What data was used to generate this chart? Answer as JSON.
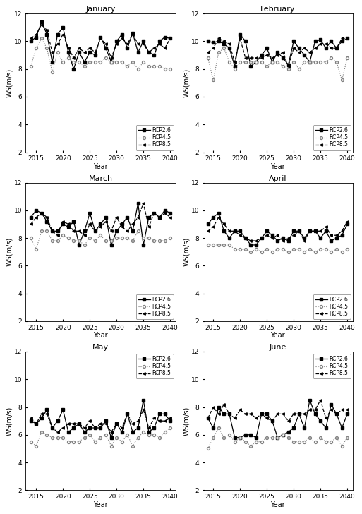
{
  "months": [
    "January",
    "February",
    "March",
    "April",
    "May",
    "June"
  ],
  "years": [
    2014,
    2015,
    2016,
    2017,
    2018,
    2019,
    2020,
    2021,
    2022,
    2023,
    2024,
    2025,
    2026,
    2027,
    2028,
    2029,
    2030,
    2031,
    2032,
    2033,
    2034,
    2035,
    2036,
    2037,
    2038,
    2039,
    2040
  ],
  "rcp26": {
    "January": [
      10.0,
      10.3,
      11.4,
      10.5,
      8.5,
      10.5,
      11.0,
      9.2,
      8.0,
      9.2,
      8.5,
      9.2,
      9.0,
      10.3,
      9.5,
      8.5,
      10.0,
      10.5,
      9.5,
      10.6,
      9.2,
      10.0,
      9.2,
      9.0,
      10.0,
      10.3,
      10.2
    ],
    "February": [
      10.0,
      9.9,
      10.0,
      9.8,
      9.5,
      8.2,
      10.5,
      10.0,
      8.2,
      8.5,
      9.0,
      9.5,
      8.5,
      9.2,
      8.8,
      8.3,
      10.0,
      9.5,
      9.0,
      8.5,
      10.0,
      10.1,
      9.5,
      10.0,
      9.5,
      10.0,
      10.2
    ],
    "March": [
      9.5,
      10.0,
      9.8,
      9.2,
      8.5,
      8.5,
      9.0,
      8.8,
      9.2,
      7.5,
      8.5,
      9.8,
      8.5,
      9.0,
      9.5,
      7.5,
      8.5,
      9.0,
      9.5,
      8.5,
      10.5,
      7.5,
      9.5,
      9.8,
      9.5,
      10.0,
      9.8
    ],
    "April": [
      9.0,
      9.5,
      9.8,
      8.5,
      8.0,
      8.5,
      8.5,
      8.0,
      7.5,
      7.5,
      8.0,
      8.5,
      8.2,
      7.8,
      8.0,
      7.8,
      8.5,
      8.5,
      8.0,
      8.5,
      8.5,
      8.0,
      8.5,
      7.8,
      8.0,
      8.2,
      9.0
    ],
    "May": [
      7.0,
      6.8,
      7.2,
      7.8,
      6.5,
      7.0,
      7.8,
      6.2,
      6.5,
      6.8,
      6.2,
      6.5,
      6.5,
      6.5,
      7.0,
      5.8,
      6.8,
      6.2,
      7.5,
      6.2,
      6.5,
      8.5,
      6.2,
      6.5,
      7.5,
      7.5,
      7.0
    ],
    "June": [
      7.2,
      6.5,
      8.0,
      7.5,
      7.5,
      5.8,
      5.8,
      6.0,
      6.0,
      5.8,
      7.5,
      7.5,
      7.0,
      5.8,
      6.0,
      6.2,
      6.5,
      7.5,
      6.5,
      8.5,
      7.5,
      7.0,
      6.5,
      8.2,
      7.5,
      6.5,
      7.5
    ]
  },
  "rcp45": {
    "January": [
      8.2,
      9.5,
      10.2,
      9.5,
      7.8,
      9.2,
      8.5,
      8.8,
      8.5,
      8.5,
      8.2,
      8.5,
      8.5,
      8.5,
      8.8,
      8.5,
      8.5,
      8.5,
      8.2,
      8.5,
      8.0,
      8.5,
      8.2,
      8.2,
      8.2,
      8.0,
      8.0
    ],
    "February": [
      8.8,
      7.2,
      9.2,
      9.5,
      8.5,
      8.0,
      8.5,
      8.5,
      8.5,
      8.5,
      8.5,
      8.2,
      8.5,
      8.5,
      8.2,
      8.0,
      8.5,
      8.0,
      8.5,
      8.5,
      8.5,
      8.5,
      8.5,
      8.8,
      8.5,
      7.2,
      8.8
    ],
    "March": [
      8.0,
      7.2,
      8.5,
      8.5,
      7.8,
      7.8,
      8.2,
      8.0,
      7.8,
      7.8,
      7.5,
      8.0,
      7.8,
      8.2,
      7.8,
      7.8,
      8.0,
      8.0,
      8.0,
      7.8,
      8.5,
      8.0,
      8.0,
      7.8,
      7.8,
      7.8,
      8.0
    ],
    "April": [
      7.5,
      7.5,
      7.5,
      7.5,
      7.5,
      7.2,
      7.2,
      7.2,
      7.0,
      7.2,
      7.0,
      7.2,
      7.0,
      7.2,
      7.2,
      7.0,
      7.2,
      7.2,
      7.0,
      7.2,
      7.0,
      7.2,
      7.2,
      7.0,
      7.2,
      7.0,
      7.2
    ],
    "May": [
      5.5,
      5.2,
      6.2,
      6.0,
      5.8,
      5.8,
      5.8,
      5.5,
      5.5,
      5.5,
      5.8,
      6.0,
      5.5,
      5.8,
      6.0,
      5.2,
      5.8,
      5.5,
      6.0,
      5.2,
      5.8,
      6.2,
      6.0,
      6.0,
      5.8,
      6.2,
      6.5
    ],
    "June": [
      5.0,
      5.8,
      6.5,
      5.8,
      6.0,
      5.5,
      5.8,
      5.5,
      5.2,
      5.5,
      5.5,
      5.8,
      5.8,
      5.8,
      6.0,
      5.8,
      5.5,
      5.5,
      5.5,
      5.8,
      5.5,
      5.8,
      5.5,
      5.5,
      5.8,
      5.2,
      5.8
    ]
  },
  "rcp85": {
    "January": [
      10.2,
      10.5,
      11.2,
      10.8,
      9.2,
      9.8,
      10.5,
      9.5,
      8.8,
      9.5,
      9.2,
      9.5,
      9.2,
      10.2,
      9.8,
      8.8,
      9.8,
      10.2,
      9.8,
      10.5,
      9.8,
      9.8,
      9.2,
      9.5,
      9.8,
      9.5,
      10.2
    ],
    "February": [
      9.2,
      9.5,
      10.2,
      10.0,
      9.8,
      8.5,
      10.2,
      8.8,
      8.8,
      8.8,
      8.8,
      9.0,
      8.8,
      9.0,
      9.2,
      8.2,
      9.5,
      9.2,
      9.5,
      9.2,
      9.5,
      9.8,
      9.8,
      9.5,
      9.5,
      10.2,
      10.2
    ],
    "March": [
      9.0,
      9.5,
      9.8,
      9.5,
      8.5,
      8.2,
      9.2,
      9.0,
      8.5,
      8.5,
      8.2,
      9.0,
      8.5,
      8.8,
      9.2,
      8.5,
      9.5,
      8.8,
      8.5,
      9.0,
      9.5,
      10.5,
      8.8,
      9.8,
      9.5,
      9.8,
      9.5
    ],
    "April": [
      8.5,
      8.8,
      9.5,
      9.0,
      8.5,
      8.5,
      8.2,
      8.0,
      7.8,
      7.8,
      8.0,
      8.2,
      8.0,
      8.2,
      7.8,
      8.0,
      8.2,
      8.5,
      7.8,
      8.5,
      8.5,
      8.5,
      8.8,
      8.2,
      8.2,
      8.5,
      9.2
    ],
    "May": [
      7.2,
      6.8,
      7.5,
      7.5,
      6.5,
      6.2,
      6.5,
      6.8,
      6.8,
      6.8,
      6.5,
      7.0,
      6.5,
      6.8,
      6.8,
      6.2,
      6.8,
      6.5,
      7.5,
      6.8,
      7.0,
      7.8,
      6.5,
      7.2,
      7.0,
      7.0,
      7.2
    ],
    "June": [
      7.2,
      8.0,
      7.5,
      8.2,
      7.5,
      7.2,
      7.8,
      7.5,
      7.5,
      7.2,
      7.5,
      7.2,
      7.0,
      7.5,
      7.5,
      7.0,
      7.5,
      7.5,
      7.5,
      7.8,
      7.8,
      8.5,
      7.2,
      7.8,
      7.5,
      7.8,
      7.8
    ]
  },
  "ylim": [
    2,
    12
  ],
  "yticks": [
    2,
    4,
    6,
    8,
    10,
    12
  ],
  "xlim": [
    2013,
    2041
  ],
  "xticks": [
    2015,
    2020,
    2025,
    2030,
    2035,
    2040
  ],
  "ylabel": "WS(m/s)",
  "xlabel": "Year",
  "legend_labels": [
    "RCP2.6",
    "RCP4.5",
    "RCP8.5"
  ],
  "figsize": [
    5.13,
    7.28
  ],
  "dpi": 100,
  "legend_loc": {
    "January": "lower right",
    "February": "lower right",
    "March": "lower right",
    "April": "lower right",
    "May": "upper right",
    "June": "upper right"
  }
}
